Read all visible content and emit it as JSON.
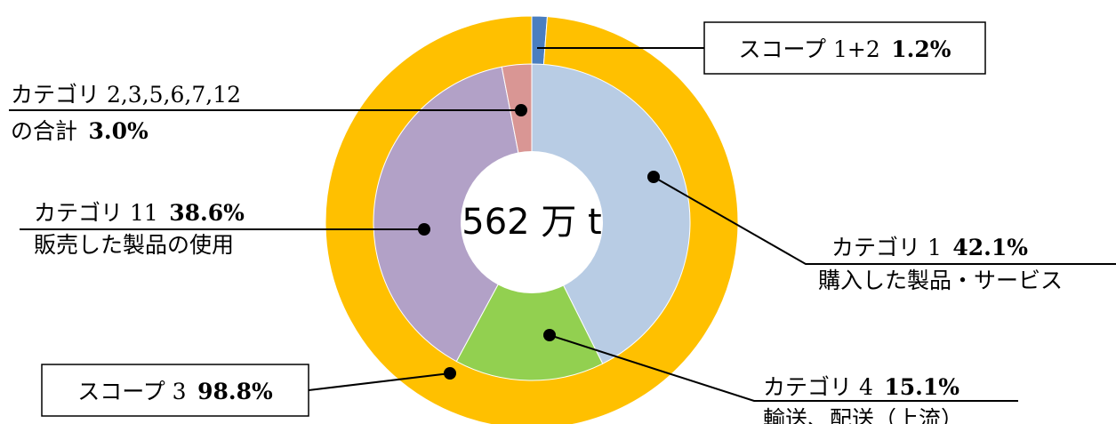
{
  "chart_data": {
    "type": "pie",
    "center_label": "562 万 t",
    "outer_ring": {
      "series": [
        {
          "name": "スコープ 1+2",
          "value": 1.2,
          "value_label": "1.2%",
          "color": "#4a7ec0"
        },
        {
          "name": "スコープ 3",
          "value": 98.8,
          "value_label": "98.8%",
          "color": "#ffc000"
        }
      ]
    },
    "inner_ring": {
      "series": [
        {
          "name": "カテゴリ 1",
          "description": "購入した製品・サービス",
          "value": 42.1,
          "value_label": "42.1%",
          "color": "#b8cce4"
        },
        {
          "name": "カテゴリ 4",
          "description": "輸送、配送（上流）",
          "value": 15.1,
          "value_label": "15.1%",
          "color": "#92d050"
        },
        {
          "name": "カテゴリ 11",
          "description": "販売した製品の使用",
          "value": 38.6,
          "value_label": "38.6%",
          "color": "#b2a1c7"
        },
        {
          "name": "カテゴリ 2,3,5,6,7,12",
          "description": "の合計",
          "value": 3.0,
          "value_label": "3.0%",
          "color": "#d99694"
        }
      ]
    }
  }
}
